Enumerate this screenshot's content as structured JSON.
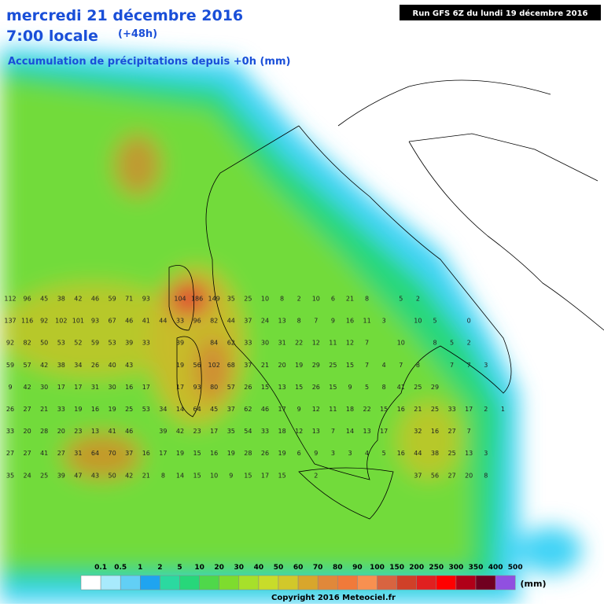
{
  "header": {
    "date_line": "mercredi 21 décembre 2016",
    "time_line": "7:00 locale",
    "lead": "(+48h)",
    "subtitle": "Accumulation de précipitations depuis +0h (mm)",
    "run": "Run GFS 6Z du lundi 19 décembre 2016"
  },
  "grid": {
    "rows": [
      {
        "values": [
          112,
          96,
          45,
          38,
          42,
          46,
          59,
          71,
          93,
          null,
          104,
          186,
          149,
          35,
          25,
          10,
          8,
          2,
          10,
          6,
          21,
          8,
          null,
          5,
          2
        ]
      },
      {
        "values": [
          137,
          116,
          92,
          102,
          101,
          93,
          67,
          46,
          41,
          44,
          33,
          96,
          82,
          44,
          37,
          24,
          13,
          8,
          7,
          9,
          16,
          11,
          3,
          null,
          10,
          5,
          null,
          0
        ]
      },
      {
        "values": [
          92,
          82,
          50,
          53,
          52,
          59,
          53,
          39,
          33,
          null,
          39,
          null,
          84,
          62,
          33,
          30,
          31,
          22,
          12,
          11,
          12,
          7,
          null,
          10,
          null,
          8,
          5,
          2
        ]
      },
      {
        "values": [
          59,
          57,
          42,
          38,
          34,
          26,
          40,
          43,
          null,
          null,
          19,
          56,
          102,
          68,
          37,
          21,
          20,
          19,
          29,
          25,
          15,
          7,
          4,
          7,
          8,
          null,
          7,
          7,
          3
        ]
      },
      {
        "values": [
          9,
          42,
          30,
          17,
          17,
          31,
          30,
          16,
          17,
          null,
          17,
          93,
          80,
          57,
          26,
          15,
          13,
          15,
          26,
          15,
          9,
          5,
          8,
          41,
          25,
          29
        ]
      },
      {
        "values": [
          26,
          27,
          21,
          33,
          19,
          16,
          19,
          25,
          53,
          34,
          14,
          64,
          45,
          37,
          62,
          46,
          17,
          9,
          12,
          11,
          18,
          22,
          15,
          16,
          21,
          25,
          33,
          17,
          2,
          1
        ]
      },
      {
        "values": [
          33,
          20,
          28,
          20,
          23,
          13,
          41,
          46,
          null,
          39,
          42,
          23,
          17,
          35,
          54,
          33,
          18,
          12,
          13,
          7,
          14,
          13,
          17,
          null,
          32,
          16,
          27,
          7
        ]
      },
      {
        "values": [
          27,
          27,
          41,
          27,
          31,
          64,
          70,
          37,
          16,
          17,
          19,
          15,
          16,
          19,
          28,
          26,
          19,
          6,
          9,
          3,
          3,
          4,
          5,
          16,
          44,
          38,
          25,
          13,
          3
        ]
      },
      {
        "values": [
          35,
          24,
          25,
          39,
          47,
          43,
          50,
          42,
          21,
          8,
          14,
          15,
          10,
          9,
          15,
          17,
          15,
          null,
          2,
          null,
          null,
          null,
          null,
          null,
          37,
          56,
          27,
          20,
          8
        ]
      }
    ]
  },
  "legend": {
    "labels": [
      "0.1",
      "0.5",
      "1",
      "2",
      "5",
      "10",
      "20",
      "30",
      "40",
      "50",
      "60",
      "70",
      "80",
      "90",
      "100",
      "150",
      "200",
      "250",
      "300",
      "350",
      "400",
      "500"
    ],
    "unit": "(mm)"
  },
  "footer": {
    "copyright": "Copyright 2016 Meteociel.fr"
  }
}
